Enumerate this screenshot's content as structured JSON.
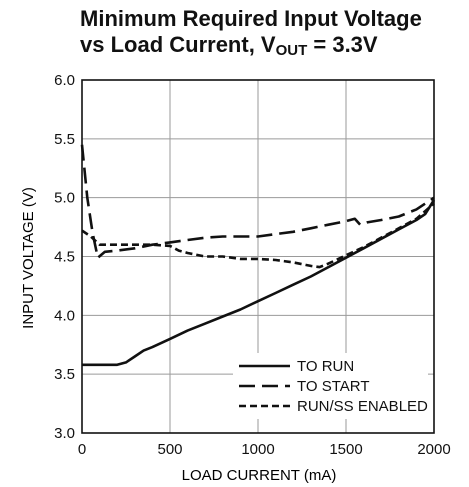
{
  "chart_data": {
    "type": "line",
    "title": {
      "line1": "Minimum Required Input Voltage",
      "line2_prefix": "vs Load Current, V",
      "line2_sub": "OUT",
      "line2_suffix": " = 3.3V"
    },
    "xlabel": "LOAD CURRENT (mA)",
    "ylabel": "INPUT VOLTAGE (V)",
    "xlim": [
      0,
      2000
    ],
    "ylim": [
      3.0,
      6.0
    ],
    "x_ticks": [
      "0",
      "500",
      "1000",
      "1500",
      "2000"
    ],
    "y_ticks": [
      "3.0",
      "3.5",
      "4.0",
      "4.5",
      "5.0",
      "5.5",
      "6.0"
    ],
    "grid": true,
    "legend_position": "bottom-right",
    "series": [
      {
        "name": "TO RUN",
        "style": "solid",
        "x": [
          0,
          100,
          200,
          250,
          300,
          350,
          400,
          500,
          600,
          700,
          800,
          900,
          1000,
          1100,
          1200,
          1300,
          1400,
          1500,
          1600,
          1700,
          1800,
          1900,
          1950,
          2000
        ],
        "y": [
          3.58,
          3.58,
          3.58,
          3.6,
          3.65,
          3.7,
          3.73,
          3.8,
          3.87,
          3.93,
          3.99,
          4.05,
          4.12,
          4.19,
          4.26,
          4.33,
          4.41,
          4.49,
          4.57,
          4.65,
          4.73,
          4.81,
          4.86,
          4.98
        ]
      },
      {
        "name": "TO START",
        "style": "long-dash",
        "x": [
          0,
          30,
          60,
          90,
          130,
          200,
          300,
          400,
          500,
          600,
          700,
          800,
          900,
          1000,
          1100,
          1200,
          1300,
          1400,
          1500,
          1550,
          1580,
          1620,
          1700,
          1800,
          1900,
          2000
        ],
        "y": [
          5.45,
          5.0,
          4.7,
          4.49,
          4.54,
          4.55,
          4.57,
          4.6,
          4.62,
          4.64,
          4.66,
          4.67,
          4.67,
          4.67,
          4.69,
          4.71,
          4.74,
          4.77,
          4.8,
          4.82,
          4.77,
          4.79,
          4.81,
          4.84,
          4.9,
          5.0
        ]
      },
      {
        "name": "RUN/SS ENABLED",
        "style": "short-dash",
        "x": [
          0,
          50,
          100,
          200,
          300,
          400,
          500,
          550,
          600,
          700,
          800,
          900,
          1000,
          1100,
          1200,
          1300,
          1350,
          1400,
          1500,
          1600,
          1700,
          1800,
          1900,
          2000
        ],
        "y": [
          4.72,
          4.67,
          4.6,
          4.6,
          4.6,
          4.6,
          4.59,
          4.55,
          4.53,
          4.5,
          4.5,
          4.48,
          4.48,
          4.47,
          4.45,
          4.42,
          4.41,
          4.44,
          4.51,
          4.58,
          4.66,
          4.74,
          4.82,
          4.95
        ]
      }
    ]
  },
  "colors": {
    "line": "#111111",
    "grid": "#9a9a9a",
    "frame": "#111111"
  }
}
